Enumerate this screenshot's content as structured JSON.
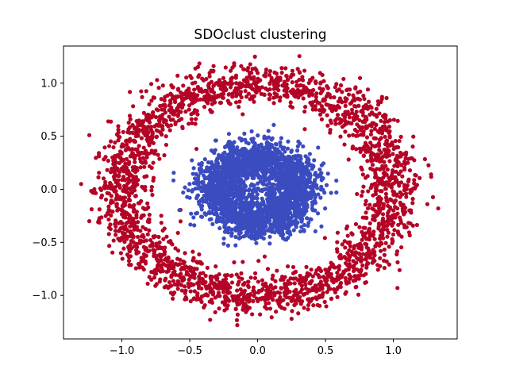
{
  "chart_data": {
    "type": "scatter",
    "title": "SDOclust clustering",
    "xlabel": "",
    "ylabel": "",
    "xlim": [
      -1.43,
      1.47
    ],
    "ylim": [
      -1.41,
      1.35
    ],
    "x_ticks": [
      -1.0,
      -0.5,
      0.0,
      0.5,
      1.0
    ],
    "x_tick_labels": [
      "−1.0",
      "−0.5",
      "0.0",
      "0.5",
      "1.0"
    ],
    "y_ticks": [
      -1.0,
      -0.5,
      0.0,
      0.5,
      1.0
    ],
    "y_tick_labels": [
      "−1.0",
      "−0.5",
      "0.0",
      "0.5",
      "1.0"
    ],
    "grid": false,
    "legend": "none",
    "colors": {
      "cluster_0": "#b40426",
      "cluster_1": "#3b4cc0"
    },
    "series": [
      {
        "cluster": 0,
        "color": "#b40426",
        "shape": "ring",
        "center": [
          0.0,
          0.0
        ],
        "radius_mean": 1.0,
        "radius_spread": 0.1,
        "approx_points": 2500,
        "points": [
          [
            -1.3,
            0.05
          ],
          [
            -1.24,
            0.51
          ],
          [
            -1.24,
            -0.3
          ],
          [
            1.33,
            -0.18
          ],
          [
            1.25,
            -0.14
          ],
          [
            -0.02,
            1.25
          ],
          [
            -0.15,
            -1.28
          ],
          [
            -0.35,
            -1.23
          ],
          [
            0.25,
            -1.22
          ],
          [
            1.03,
            -0.93
          ],
          [
            -1.1,
            0.64
          ],
          [
            0.95,
            0.86
          ]
        ]
      },
      {
        "cluster": 1,
        "color": "#3b4cc0",
        "shape": "disk",
        "center": [
          0.0,
          0.0
        ],
        "radius_mean": 0.3,
        "radius_spread": 0.1,
        "approx_points": 2500,
        "points": [
          [
            -0.31,
            0.46
          ],
          [
            0.08,
            0.55
          ],
          [
            0.3,
            0.45
          ],
          [
            0.47,
            -0.35
          ],
          [
            -0.5,
            -0.08
          ],
          [
            -0.39,
            0.17
          ],
          [
            0.58,
            -0.03
          ],
          [
            -0.02,
            -0.47
          ]
        ]
      }
    ]
  }
}
